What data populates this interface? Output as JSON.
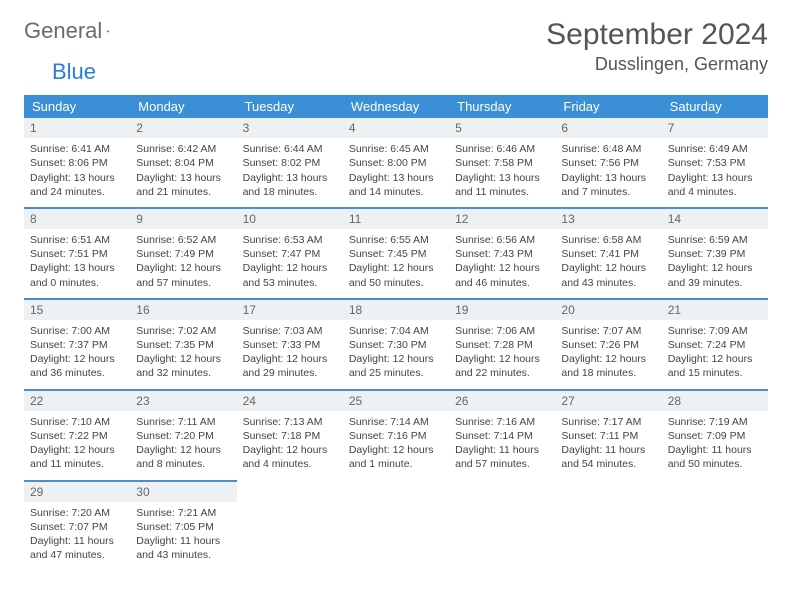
{
  "logo": {
    "word1": "General",
    "word2": "Blue"
  },
  "title": "September 2024",
  "location": "Dusslingen, Germany",
  "colors": {
    "header_bg": "#3b8fd6",
    "header_text": "#ffffff",
    "row_border": "#4a8fc9",
    "daynum_bg": "#eef1f3",
    "page_bg": "#ffffff",
    "text": "#444444"
  },
  "weekdays": [
    "Sunday",
    "Monday",
    "Tuesday",
    "Wednesday",
    "Thursday",
    "Friday",
    "Saturday"
  ],
  "days": [
    {
      "n": "1",
      "sr": "Sunrise: 6:41 AM",
      "ss": "Sunset: 8:06 PM",
      "d1": "Daylight: 13 hours",
      "d2": "and 24 minutes."
    },
    {
      "n": "2",
      "sr": "Sunrise: 6:42 AM",
      "ss": "Sunset: 8:04 PM",
      "d1": "Daylight: 13 hours",
      "d2": "and 21 minutes."
    },
    {
      "n": "3",
      "sr": "Sunrise: 6:44 AM",
      "ss": "Sunset: 8:02 PM",
      "d1": "Daylight: 13 hours",
      "d2": "and 18 minutes."
    },
    {
      "n": "4",
      "sr": "Sunrise: 6:45 AM",
      "ss": "Sunset: 8:00 PM",
      "d1": "Daylight: 13 hours",
      "d2": "and 14 minutes."
    },
    {
      "n": "5",
      "sr": "Sunrise: 6:46 AM",
      "ss": "Sunset: 7:58 PM",
      "d1": "Daylight: 13 hours",
      "d2": "and 11 minutes."
    },
    {
      "n": "6",
      "sr": "Sunrise: 6:48 AM",
      "ss": "Sunset: 7:56 PM",
      "d1": "Daylight: 13 hours",
      "d2": "and 7 minutes."
    },
    {
      "n": "7",
      "sr": "Sunrise: 6:49 AM",
      "ss": "Sunset: 7:53 PM",
      "d1": "Daylight: 13 hours",
      "d2": "and 4 minutes."
    },
    {
      "n": "8",
      "sr": "Sunrise: 6:51 AM",
      "ss": "Sunset: 7:51 PM",
      "d1": "Daylight: 13 hours",
      "d2": "and 0 minutes."
    },
    {
      "n": "9",
      "sr": "Sunrise: 6:52 AM",
      "ss": "Sunset: 7:49 PM",
      "d1": "Daylight: 12 hours",
      "d2": "and 57 minutes."
    },
    {
      "n": "10",
      "sr": "Sunrise: 6:53 AM",
      "ss": "Sunset: 7:47 PM",
      "d1": "Daylight: 12 hours",
      "d2": "and 53 minutes."
    },
    {
      "n": "11",
      "sr": "Sunrise: 6:55 AM",
      "ss": "Sunset: 7:45 PM",
      "d1": "Daylight: 12 hours",
      "d2": "and 50 minutes."
    },
    {
      "n": "12",
      "sr": "Sunrise: 6:56 AM",
      "ss": "Sunset: 7:43 PM",
      "d1": "Daylight: 12 hours",
      "d2": "and 46 minutes."
    },
    {
      "n": "13",
      "sr": "Sunrise: 6:58 AM",
      "ss": "Sunset: 7:41 PM",
      "d1": "Daylight: 12 hours",
      "d2": "and 43 minutes."
    },
    {
      "n": "14",
      "sr": "Sunrise: 6:59 AM",
      "ss": "Sunset: 7:39 PM",
      "d1": "Daylight: 12 hours",
      "d2": "and 39 minutes."
    },
    {
      "n": "15",
      "sr": "Sunrise: 7:00 AM",
      "ss": "Sunset: 7:37 PM",
      "d1": "Daylight: 12 hours",
      "d2": "and 36 minutes."
    },
    {
      "n": "16",
      "sr": "Sunrise: 7:02 AM",
      "ss": "Sunset: 7:35 PM",
      "d1": "Daylight: 12 hours",
      "d2": "and 32 minutes."
    },
    {
      "n": "17",
      "sr": "Sunrise: 7:03 AM",
      "ss": "Sunset: 7:33 PM",
      "d1": "Daylight: 12 hours",
      "d2": "and 29 minutes."
    },
    {
      "n": "18",
      "sr": "Sunrise: 7:04 AM",
      "ss": "Sunset: 7:30 PM",
      "d1": "Daylight: 12 hours",
      "d2": "and 25 minutes."
    },
    {
      "n": "19",
      "sr": "Sunrise: 7:06 AM",
      "ss": "Sunset: 7:28 PM",
      "d1": "Daylight: 12 hours",
      "d2": "and 22 minutes."
    },
    {
      "n": "20",
      "sr": "Sunrise: 7:07 AM",
      "ss": "Sunset: 7:26 PM",
      "d1": "Daylight: 12 hours",
      "d2": "and 18 minutes."
    },
    {
      "n": "21",
      "sr": "Sunrise: 7:09 AM",
      "ss": "Sunset: 7:24 PM",
      "d1": "Daylight: 12 hours",
      "d2": "and 15 minutes."
    },
    {
      "n": "22",
      "sr": "Sunrise: 7:10 AM",
      "ss": "Sunset: 7:22 PM",
      "d1": "Daylight: 12 hours",
      "d2": "and 11 minutes."
    },
    {
      "n": "23",
      "sr": "Sunrise: 7:11 AM",
      "ss": "Sunset: 7:20 PM",
      "d1": "Daylight: 12 hours",
      "d2": "and 8 minutes."
    },
    {
      "n": "24",
      "sr": "Sunrise: 7:13 AM",
      "ss": "Sunset: 7:18 PM",
      "d1": "Daylight: 12 hours",
      "d2": "and 4 minutes."
    },
    {
      "n": "25",
      "sr": "Sunrise: 7:14 AM",
      "ss": "Sunset: 7:16 PM",
      "d1": "Daylight: 12 hours",
      "d2": "and 1 minute."
    },
    {
      "n": "26",
      "sr": "Sunrise: 7:16 AM",
      "ss": "Sunset: 7:14 PM",
      "d1": "Daylight: 11 hours",
      "d2": "and 57 minutes."
    },
    {
      "n": "27",
      "sr": "Sunrise: 7:17 AM",
      "ss": "Sunset: 7:11 PM",
      "d1": "Daylight: 11 hours",
      "d2": "and 54 minutes."
    },
    {
      "n": "28",
      "sr": "Sunrise: 7:19 AM",
      "ss": "Sunset: 7:09 PM",
      "d1": "Daylight: 11 hours",
      "d2": "and 50 minutes."
    },
    {
      "n": "29",
      "sr": "Sunrise: 7:20 AM",
      "ss": "Sunset: 7:07 PM",
      "d1": "Daylight: 11 hours",
      "d2": "and 47 minutes."
    },
    {
      "n": "30",
      "sr": "Sunrise: 7:21 AM",
      "ss": "Sunset: 7:05 PM",
      "d1": "Daylight: 11 hours",
      "d2": "and 43 minutes."
    }
  ]
}
